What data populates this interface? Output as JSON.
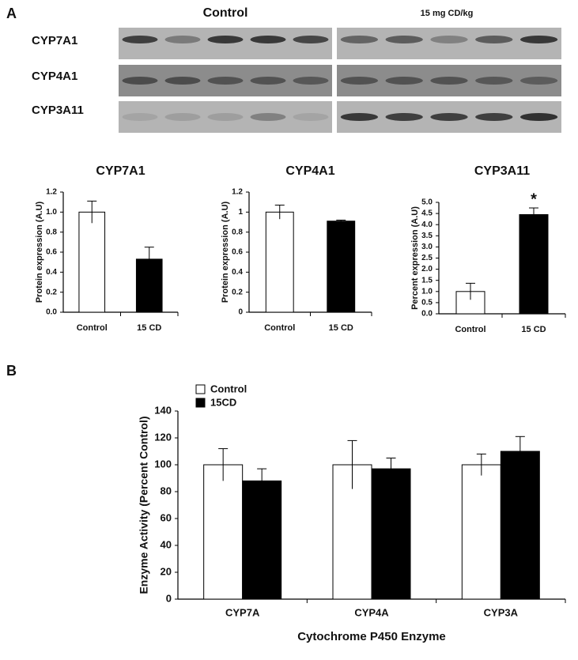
{
  "panel_labels": [
    "A",
    "B"
  ],
  "blot": {
    "groups": [
      "Control",
      "15 mg CD/kg"
    ],
    "rows": [
      "CYP7A1",
      "CYP4A1",
      "CYP3A11"
    ]
  },
  "chart_data": [
    {
      "type": "bar",
      "title": "CYP7A1",
      "ylabel": "Protein expression (A.U)",
      "categories": [
        "Control",
        "15 CD"
      ],
      "values": [
        1.0,
        0.53
      ],
      "errors": [
        0.11,
        0.12
      ],
      "colors": [
        "#ffffff",
        "#000000"
      ],
      "ylim": [
        0,
        1.2
      ],
      "yticks": [
        {
          "value": 0,
          "label": "0.0"
        },
        0.2,
        0.4,
        0.6,
        0.8,
        {
          "value": 1,
          "label": "1.0"
        },
        1.2
      ]
    },
    {
      "type": "bar",
      "title": "CYP4A1",
      "ylabel": "Protein expression (A.U)",
      "categories": [
        "Control",
        "15 CD"
      ],
      "values": [
        1.0,
        0.91
      ],
      "errors": [
        0.07,
        0.01
      ],
      "colors": [
        "#ffffff",
        "#000000"
      ],
      "ylim": [
        0,
        1.2
      ],
      "yticks": [
        {
          "value": 0,
          "label": "0"
        },
        0.2,
        0.4,
        0.6,
        0.8,
        {
          "value": 1,
          "label": "1"
        },
        1.2
      ]
    },
    {
      "type": "bar",
      "title": "CYP3A11",
      "ylabel": "Percent expression (A.U)",
      "categories": [
        "Control",
        "15 CD"
      ],
      "values": [
        1.0,
        4.45
      ],
      "errors": [
        0.37,
        0.3
      ],
      "colors": [
        "#ffffff",
        "#000000"
      ],
      "ylim": [
        0,
        5
      ],
      "yticks": [
        {
          "value": 0,
          "label": "0.0"
        },
        0.5,
        {
          "value": 1,
          "label": "1.0"
        },
        1.5,
        {
          "value": 2,
          "label": "2.0"
        },
        2.5,
        {
          "value": 3,
          "label": "3.0"
        },
        3.5,
        {
          "value": 4,
          "label": "4.0"
        },
        4.5,
        {
          "value": 5,
          "label": "5.0"
        }
      ],
      "annotations": [
        {
          "text": "*",
          "index": 1
        }
      ]
    },
    {
      "type": "grouped_bar",
      "ylabel": "Enzyme Activity (Percent Control)",
      "xlabel": "Cytochrome P450 Enzyme",
      "categories": [
        "CYP7A",
        "CYP4A",
        "CYP3A"
      ],
      "legend": "top-left",
      "series": [
        {
          "name": "Control",
          "color": "#ffffff",
          "values": [
            100,
            100,
            100
          ],
          "errors": [
            12,
            18,
            8
          ]
        },
        {
          "name": "15CD",
          "color": "#000000",
          "values": [
            88,
            97,
            110
          ],
          "errors": [
            9,
            8,
            11
          ]
        }
      ],
      "ylim": [
        0,
        140
      ],
      "yticks": [
        0,
        20,
        40,
        60,
        80,
        100,
        120,
        140
      ]
    }
  ]
}
